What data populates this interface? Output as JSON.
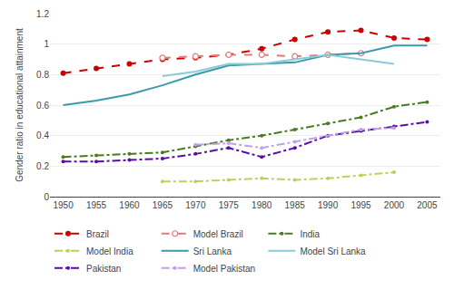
{
  "chart_data": {
    "type": "line",
    "ylabel": "Gender ratio in educational attainment",
    "x": [
      1950,
      1955,
      1960,
      1965,
      1970,
      1975,
      1980,
      1985,
      1990,
      1995,
      2000,
      2005
    ],
    "series": [
      {
        "name": "Brazil",
        "color": "#cc0000",
        "line_style": "dashed",
        "marker": "circle",
        "values": [
          0.81,
          0.84,
          0.87,
          0.9,
          0.91,
          0.93,
          0.97,
          1.03,
          1.08,
          1.09,
          1.04,
          1.03
        ]
      },
      {
        "name": "Model Brazil",
        "color": "#e87878",
        "line_style": "dashed",
        "marker": "open_circle",
        "values": [
          null,
          null,
          null,
          0.91,
          0.92,
          0.93,
          0.93,
          0.92,
          0.93,
          0.94,
          null,
          null
        ]
      },
      {
        "name": "India",
        "color": "#4a7c1f",
        "line_style": "dashdot",
        "marker": "dot",
        "values": [
          0.26,
          0.27,
          0.28,
          0.29,
          0.33,
          0.37,
          0.4,
          0.44,
          0.48,
          0.52,
          0.59,
          0.62
        ]
      },
      {
        "name": "Model India",
        "color": "#b8d458",
        "line_style": "dashdot",
        "marker": "dot",
        "values": [
          null,
          null,
          null,
          0.1,
          0.1,
          0.11,
          0.12,
          0.11,
          0.12,
          0.14,
          0.16,
          null
        ]
      },
      {
        "name": "Sri Lanka",
        "color": "#3a9aaa",
        "line_style": "solid",
        "values": [
          0.6,
          0.63,
          0.67,
          0.73,
          0.8,
          0.86,
          0.87,
          0.88,
          0.93,
          0.94,
          0.99,
          0.99
        ]
      },
      {
        "name": "Model Sri Lanka",
        "color": "#88ccd8",
        "line_style": "solid",
        "values": [
          null,
          null,
          null,
          0.79,
          0.82,
          0.87,
          0.87,
          null,
          0.93,
          0.9,
          0.87,
          null
        ]
      },
      {
        "name": "Pakistan",
        "color": "#5b0ea6",
        "line_style": "dashdot",
        "marker": "dot",
        "values": [
          0.23,
          0.23,
          0.24,
          0.25,
          0.28,
          0.32,
          0.26,
          0.32,
          0.4,
          0.43,
          0.46,
          0.49
        ]
      },
      {
        "name": "Model Pakistan",
        "color": "#c0a0e8",
        "line_style": "dashdot",
        "marker": "dot",
        "values": [
          null,
          null,
          null,
          null,
          0.34,
          0.35,
          0.32,
          0.36,
          null,
          0.44,
          0.45,
          null
        ]
      }
    ],
    "xlim": [
      1948,
      2007
    ],
    "xticks": [
      1950,
      1955,
      1960,
      1965,
      1970,
      1975,
      1980,
      1985,
      1990,
      1995,
      2000,
      2005
    ],
    "ylim": [
      0,
      1.2
    ],
    "yticks": [
      0,
      0.2,
      0.4,
      0.6,
      0.8,
      1,
      1.2
    ],
    "grid": "y",
    "legend": "bottom"
  }
}
